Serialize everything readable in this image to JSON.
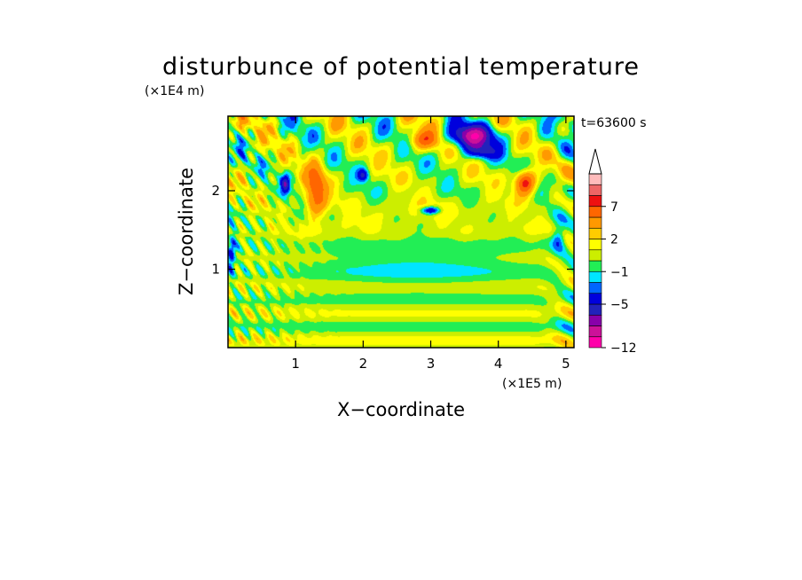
{
  "chart_data": {
    "type": "heatmap",
    "title": "disturbunce of potential temperature",
    "xlabel": "X−coordinate",
    "ylabel": "Z−coordinate",
    "x_scale_note": "(×1E5 m)",
    "y_scale_note": "(×1E4 m)",
    "time_label": "t=63600 s",
    "xlim": [
      0,
      5.12
    ],
    "ylim": [
      0,
      2.95
    ],
    "x_ticks": [
      {
        "value": 1,
        "label": "1"
      },
      {
        "value": 2,
        "label": "2"
      },
      {
        "value": 3,
        "label": "3"
      },
      {
        "value": 4,
        "label": "4"
      },
      {
        "value": 5,
        "label": "5"
      }
    ],
    "y_ticks": [
      {
        "value": 1,
        "label": "1"
      },
      {
        "value": 2,
        "label": "2"
      }
    ],
    "colorbar": {
      "levels": [
        -12,
        -11,
        -9,
        -7,
        -5,
        -3,
        -2,
        -1,
        0,
        1,
        2,
        3,
        5,
        7,
        9,
        11
      ],
      "colors": [
        "#ff00aa",
        "#cc1199",
        "#8800aa",
        "#2222bb",
        "#0000dd",
        "#0066ff",
        "#00e5ff",
        "#22ee55",
        "#ccee00",
        "#ffff00",
        "#ffcc00",
        "#ff9900",
        "#ff6600",
        "#ee1111",
        "#ee6666",
        "#ffbbbb"
      ],
      "tick_labels": [
        {
          "value": 7,
          "label": "7"
        },
        {
          "value": 2,
          "label": "2"
        },
        {
          "value": -1,
          "label": "−1"
        },
        {
          "value": -5,
          "label": "−5"
        },
        {
          "value": -12,
          "label": "−12"
        }
      ],
      "extend": "max"
    },
    "features": [
      {
        "x": 3.6,
        "z": 2.7,
        "value": -9,
        "sx": 0.35,
        "sz": 0.15
      },
      {
        "x": 3.75,
        "z": 2.5,
        "value": -5,
        "sx": 0.25,
        "sz": 0.1
      },
      {
        "x": 4.4,
        "z": 2.1,
        "value": 8,
        "sx": 0.15,
        "sz": 0.15
      },
      {
        "x": 2.9,
        "z": 2.65,
        "value": 5,
        "sx": 0.25,
        "sz": 0.12
      },
      {
        "x": 1.3,
        "z": 2.0,
        "value": 6,
        "sx": 0.15,
        "sz": 0.35
      },
      {
        "x": 0.85,
        "z": 2.1,
        "value": -6,
        "sx": 0.06,
        "sz": 0.12
      },
      {
        "x": 3.0,
        "z": 1.75,
        "value": -6,
        "sx": 0.15,
        "sz": 0.05
      },
      {
        "x": 2.0,
        "z": 2.2,
        "value": -5,
        "sx": 0.08,
        "sz": 0.08
      },
      {
        "x": 0.05,
        "z": 1.2,
        "value": -5,
        "sx": 0.06,
        "sz": 0.2
      },
      {
        "x": 4.9,
        "z": 1.4,
        "value": -4,
        "sx": 0.1,
        "sz": 0.15
      }
    ]
  }
}
